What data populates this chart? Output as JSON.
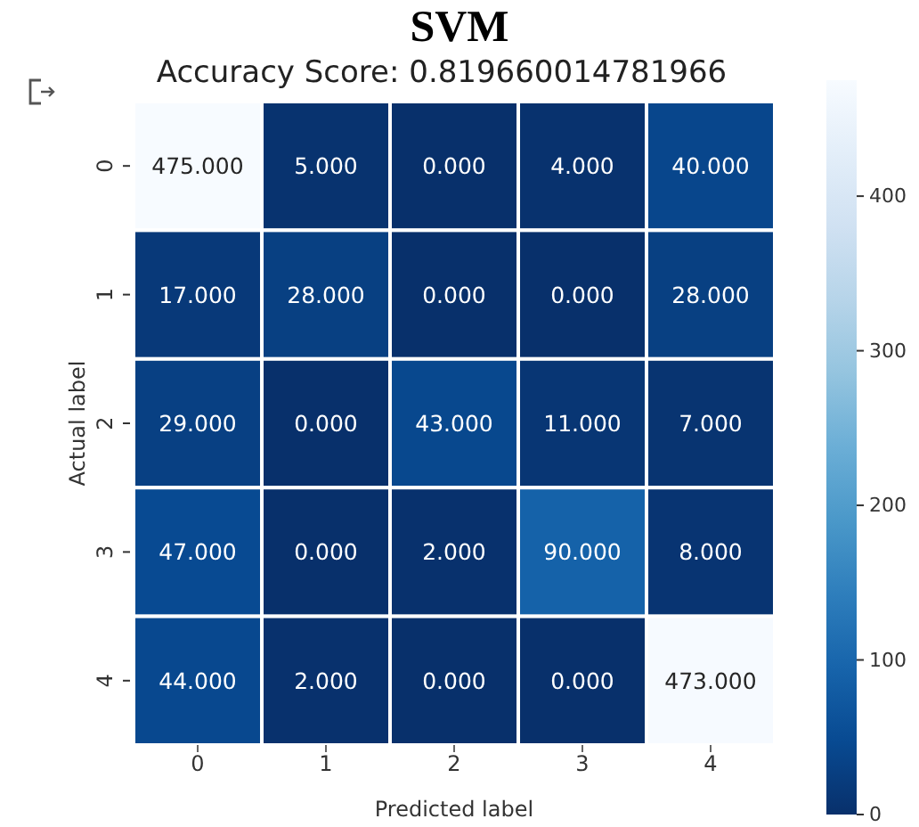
{
  "chart_data": {
    "type": "heatmap",
    "title": "SVM",
    "subtitle": "Accuracy Score: 0.819660014781966",
    "xlabel": "Predicted label",
    "ylabel": "Actual label",
    "categories": [
      "0",
      "1",
      "2",
      "3",
      "4"
    ],
    "y_categories": [
      "0",
      "1",
      "2",
      "3",
      "4"
    ],
    "cells": [
      [
        475,
        5,
        0,
        4,
        40
      ],
      [
        17,
        28,
        0,
        0,
        28
      ],
      [
        29,
        0,
        43,
        11,
        7
      ],
      [
        47,
        0,
        2,
        90,
        8
      ],
      [
        44,
        2,
        0,
        0,
        473
      ]
    ],
    "cell_labels": [
      [
        "475.000",
        "5.000",
        "0.000",
        "4.000",
        "40.000"
      ],
      [
        "17.000",
        "28.000",
        "0.000",
        "0.000",
        "28.000"
      ],
      [
        "29.000",
        "0.000",
        "43.000",
        "11.000",
        "7.000"
      ],
      [
        "47.000",
        "0.000",
        "2.000",
        "90.000",
        "8.000"
      ],
      [
        "44.000",
        "2.000",
        "0.000",
        "0.000",
        "473.000"
      ]
    ],
    "clim": [
      0,
      475
    ],
    "cticks": [
      0,
      100,
      200,
      300,
      400
    ]
  }
}
